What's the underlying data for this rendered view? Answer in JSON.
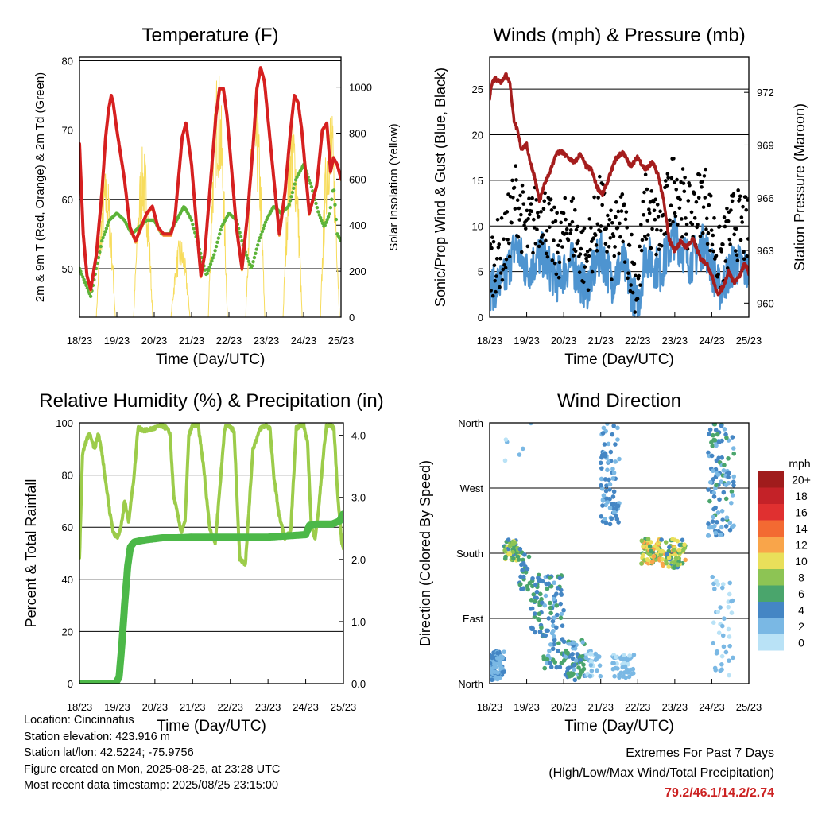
{
  "colors": {
    "red": "#d62020",
    "orange": "#f59a3a",
    "green": "#5cb338",
    "yellow": "#f7dc5c",
    "blue": "#4e94d0",
    "black": "#000000",
    "maroon": "#a51d1d",
    "rh": "#9ccc4a",
    "rain": "#4cb848"
  },
  "x_ticks": [
    "18/23",
    "19/23",
    "20/23",
    "21/23",
    "22/23",
    "23/23",
    "24/23",
    "25/23"
  ],
  "charts": [
    {
      "id": "temperature",
      "type": "line",
      "title": "Temperature (F)",
      "xlabel": "Time (Day/UTC)",
      "ylabel": "2m & 9m T (Red, Orange) & 2m Td (Green)",
      "ylabel_right": "Solar Insolation (Yellow)",
      "xlim": [
        0,
        7
      ],
      "ylim": [
        43,
        80.5
      ],
      "ylim_right": [
        0,
        1130
      ],
      "yticks": [
        50,
        60,
        70,
        80
      ],
      "yticks_right": [
        0,
        200,
        400,
        600,
        800,
        1000
      ],
      "series": [
        {
          "key": "temp",
          "x": [
            0,
            0.1,
            0.2,
            0.3,
            0.45,
            0.6,
            0.7,
            0.78,
            0.85,
            0.9,
            1.0,
            1.2,
            1.35,
            1.5,
            1.65,
            1.8,
            1.95,
            2.1,
            2.25,
            2.45,
            2.55,
            2.65,
            2.75,
            2.85,
            3.0,
            3.15,
            3.25,
            3.35,
            3.5,
            3.65,
            3.75,
            3.85,
            3.95,
            4.2,
            4.35,
            4.5,
            4.65,
            4.75,
            4.85,
            4.95,
            5.2,
            5.35,
            5.5,
            5.65,
            5.75,
            5.85,
            5.95,
            6.15,
            6.35,
            6.5,
            6.62,
            6.72,
            6.8,
            6.9,
            7.0
          ],
          "y": [
            68,
            55,
            49,
            47,
            52,
            61,
            69,
            73,
            75,
            74,
            70,
            63,
            56,
            54,
            56,
            58,
            59,
            56,
            55,
            55,
            57,
            63,
            69,
            71,
            65,
            55,
            49,
            52,
            62,
            72,
            76,
            76,
            72,
            56,
            50,
            58,
            68,
            76,
            79,
            77,
            63,
            55,
            61,
            70,
            75,
            74,
            70,
            58,
            62,
            70,
            71,
            64,
            66,
            65,
            63
          ]
        },
        {
          "key": "dewpoint",
          "x": [
            0,
            0.15,
            0.3,
            0.45,
            0.6,
            0.8,
            1.0,
            1.2,
            1.4,
            1.6,
            1.8,
            2.0,
            2.2,
            2.4,
            2.6,
            2.8,
            3.0,
            3.2,
            3.4,
            3.6,
            3.8,
            4.0,
            4.2,
            4.4,
            4.6,
            4.8,
            5.0,
            5.2,
            5.4,
            5.6,
            5.8,
            6.0,
            6.2,
            6.4,
            6.55,
            6.7,
            6.8,
            6.9,
            7.0
          ],
          "y": [
            50,
            48,
            46,
            50,
            54,
            57,
            58,
            57,
            55,
            56,
            57,
            57,
            55,
            55,
            57,
            59,
            57,
            53,
            49,
            52,
            56,
            58,
            57,
            53,
            50,
            54,
            57,
            59,
            58,
            59,
            63,
            65,
            62,
            58,
            56,
            58,
            62,
            55,
            54
          ]
        }
      ]
    },
    {
      "id": "wind_pressure",
      "type": "line",
      "title": "Winds (mph) & Pressure (mb)",
      "xlabel": "Time (Day/UTC)",
      "ylabel": "Sonic/Prop Wind & Gust (Blue, Black)",
      "ylabel_right": "Station Pressure (Maroon)",
      "xlim": [
        0,
        7
      ],
      "ylim": [
        0,
        28.5
      ],
      "ylim_right": [
        959.2,
        974
      ],
      "yticks": [
        0,
        5,
        10,
        15,
        20,
        25
      ],
      "yticks_right": [
        960,
        963,
        966,
        969,
        972
      ],
      "series": [
        {
          "key": "pressure",
          "x": [
            0,
            0.05,
            0.15,
            0.3,
            0.45,
            0.55,
            0.65,
            0.75,
            0.85,
            1.0,
            1.1,
            1.2,
            1.35,
            1.5,
            1.65,
            1.8,
            1.95,
            2.1,
            2.3,
            2.45,
            2.6,
            2.75,
            2.9,
            3.05,
            3.2,
            3.4,
            3.6,
            3.8,
            4.0,
            4.2,
            4.4,
            4.55,
            4.7,
            4.85,
            5.0,
            5.15,
            5.3,
            5.5,
            5.7,
            5.85,
            6.0,
            6.15,
            6.3,
            6.45,
            6.6,
            6.75,
            6.9,
            7.0
          ],
          "y": [
            971.6,
            972.5,
            972.8,
            972.6,
            973.0,
            972.5,
            970.5,
            969.8,
            968.8,
            969.0,
            968.0,
            967.3,
            965.8,
            966.9,
            967.6,
            968.5,
            968.6,
            968.3,
            968.0,
            968.5,
            967.8,
            967.6,
            966.6,
            966.2,
            967.0,
            968.2,
            968.6,
            967.8,
            968.3,
            967.6,
            968.0,
            967.3,
            965.8,
            963.6,
            963.0,
            963.5,
            963.2,
            963.6,
            962.5,
            962.3,
            961.6,
            960.5,
            960.9,
            961.8,
            961.2,
            961.5,
            962.3,
            961.7
          ]
        }
      ]
    },
    {
      "id": "rh_precip",
      "type": "line",
      "title": "Relative Humidity (%) & Precipitation (in)",
      "xlabel": "Time (Day/UTC)",
      "ylabel": "Percent & Total Rainfall",
      "xlim": [
        0,
        7
      ],
      "ylim": [
        0,
        100
      ],
      "ylim_right": [
        0,
        4.2
      ],
      "yticks": [
        0,
        20,
        40,
        60,
        80,
        100
      ],
      "yticks_right": [
        "0.0",
        "1.0",
        "2.0",
        "3.0",
        "4.0"
      ],
      "series": [
        {
          "key": "rh",
          "x": [
            0,
            0.08,
            0.16,
            0.25,
            0.32,
            0.4,
            0.5,
            0.6,
            0.7,
            0.8,
            0.9,
            1.0,
            1.1,
            1.2,
            1.3,
            1.45,
            1.55,
            1.75,
            2.0,
            2.2,
            2.3,
            2.4,
            2.5,
            2.6,
            2.7,
            2.8,
            2.9,
            3.0,
            3.15,
            3.3,
            3.45,
            3.6,
            3.75,
            3.85,
            3.95,
            4.0,
            4.1,
            4.25,
            4.4,
            4.6,
            4.8,
            4.95,
            5.05,
            5.15,
            5.3,
            5.45,
            5.6,
            5.75,
            5.85,
            5.95,
            6.05,
            6.15,
            6.25,
            6.35,
            6.45,
            6.55,
            6.65,
            6.75,
            6.85,
            6.95,
            7.0
          ],
          "y": [
            48,
            88,
            92,
            96,
            94,
            90,
            96,
            88,
            77,
            66,
            58,
            56,
            60,
            70,
            62,
            80,
            98,
            97,
            98,
            99,
            98,
            96,
            72,
            65,
            58,
            62,
            95,
            99,
            99,
            82,
            60,
            54,
            80,
            98,
            99,
            98,
            97,
            48,
            46,
            90,
            98,
            99,
            98,
            80,
            64,
            56,
            58,
            98,
            99,
            99,
            92,
            60,
            56,
            68,
            85,
            99,
            99,
            98,
            72,
            55,
            52
          ]
        },
        {
          "key": "precip",
          "x": [
            0,
            0.5,
            0.95,
            1.05,
            1.12,
            1.2,
            1.28,
            1.35,
            1.45,
            1.6,
            1.8,
            2.2,
            2.6,
            3.0,
            3.5,
            4.0,
            5.0,
            5.5,
            6.0,
            6.1,
            6.3,
            6.7,
            6.9,
            7.0
          ],
          "y": [
            0,
            0,
            0,
            0.1,
            0.6,
            1.3,
            1.9,
            2.2,
            2.28,
            2.3,
            2.32,
            2.35,
            2.35,
            2.36,
            2.36,
            2.36,
            2.36,
            2.38,
            2.4,
            2.55,
            2.57,
            2.57,
            2.62,
            2.74
          ]
        }
      ]
    },
    {
      "id": "wind_direction",
      "type": "scatter",
      "title": "Wind Direction",
      "xlabel": "Time (Day/UTC)",
      "ylabel": "Direction (Colored By Speed)",
      "xlim": [
        0,
        7
      ],
      "ylim": [
        0,
        360
      ],
      "yticks": [
        "North",
        "East",
        "South",
        "West",
        "North"
      ],
      "legend_title": "mph",
      "legend_labels": [
        "20+",
        "18",
        "16",
        "14",
        "12",
        "10",
        "8",
        "6",
        "4",
        "2",
        "0"
      ],
      "legend_colors": [
        "#a01c1c",
        "#c42228",
        "#e03030",
        "#f36a32",
        "#f9a54a",
        "#e9df5a",
        "#8dc454",
        "#4aa56c",
        "#4486c4",
        "#7ab8e4",
        "#b9e2f6"
      ],
      "clusters": [
        {
          "x": [
            0,
            0.4
          ],
          "y": [
            5,
            45
          ],
          "sp": [
            1,
            4
          ],
          "n": 80
        },
        {
          "x": [
            0.4,
            0.8
          ],
          "y": [
            170,
            200
          ],
          "sp": [
            4,
            10
          ],
          "n": 45
        },
        {
          "x": [
            0.8,
            1.1
          ],
          "y": [
            130,
            190
          ],
          "sp": [
            3,
            7
          ],
          "n": 25
        },
        {
          "x": [
            1.1,
            1.4
          ],
          "y": [
            70,
            150
          ],
          "sp": [
            3,
            7
          ],
          "n": 40
        },
        {
          "x": [
            1.4,
            2.0
          ],
          "y": [
            20,
            150
          ],
          "sp": [
            2,
            6
          ],
          "n": 80
        },
        {
          "x": [
            2.0,
            2.6
          ],
          "y": [
            5,
            60
          ],
          "sp": [
            2,
            7
          ],
          "n": 70
        },
        {
          "x": [
            2.6,
            3.0
          ],
          "y": [
            10,
            45
          ],
          "sp": [
            0,
            3
          ],
          "n": 30
        },
        {
          "x": [
            3.0,
            3.5
          ],
          "y": [
            220,
            320
          ],
          "sp": [
            1,
            5
          ],
          "n": 70
        },
        {
          "x": [
            3.0,
            3.5
          ],
          "y": [
            330,
            360
          ],
          "sp": [
            1,
            4
          ],
          "n": 12
        },
        {
          "x": [
            3.3,
            3.9
          ],
          "y": [
            8,
            40
          ],
          "sp": [
            0,
            3
          ],
          "n": 50
        },
        {
          "x": [
            4.1,
            4.6
          ],
          "y": [
            165,
            200
          ],
          "sp": [
            5,
            13
          ],
          "n": 80
        },
        {
          "x": [
            4.6,
            5.3
          ],
          "y": [
            160,
            200
          ],
          "sp": [
            4,
            12
          ],
          "n": 70
        },
        {
          "x": [
            5.9,
            6.6
          ],
          "y": [
            200,
            360
          ],
          "sp": [
            1,
            6
          ],
          "n": 110
        },
        {
          "x": [
            6.0,
            6.6
          ],
          "y": [
            0,
            150
          ],
          "sp": [
            0,
            3
          ],
          "n": 40
        },
        {
          "x": [
            0.4,
            1.2
          ],
          "y": [
            300,
            360
          ],
          "sp": [
            0,
            2
          ],
          "n": 6
        }
      ]
    }
  ],
  "info": [
    "Location: Cincinnatus",
    "Station elevation: 423.916 m",
    "Station lat/lon: 42.5224; -75.9756",
    "Figure created on Mon, 2025-08-25, at 23:28 UTC",
    "Most recent data timestamp: 2025/08/25 23:15:00"
  ],
  "extremes": {
    "title": "Extremes For Past 7 Days",
    "subtitle": "(High/Low/Max Wind/Total Precipitation)",
    "values": "79.2/46.1/14.2/2.74"
  }
}
